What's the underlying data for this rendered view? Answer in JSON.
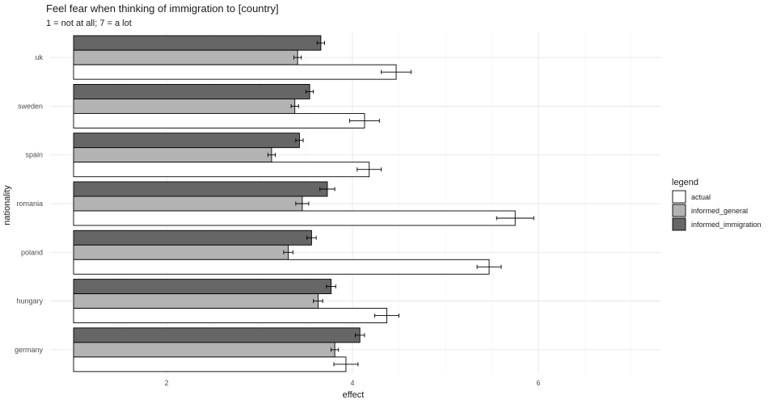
{
  "chart_data": {
    "type": "bar",
    "orientation": "horizontal",
    "title": "Feel fear when thinking of immigration to [country]",
    "subtitle": "1 = not at all; 7 = a lot",
    "xlabel": "effect",
    "ylabel": "nationality",
    "xlim": [
      1,
      7.3
    ],
    "xticks": [
      2,
      4,
      6
    ],
    "grid": true,
    "categories": [
      "germany",
      "hungary",
      "poland",
      "romania",
      "spain",
      "sweden",
      "uk"
    ],
    "legend": {
      "title": "legend",
      "position": "right",
      "entries": [
        "actual",
        "informed_general",
        "informed_immigration"
      ]
    },
    "series": [
      {
        "name": "actual",
        "color": "#ffffff",
        "values": [
          3.93,
          4.37,
          5.47,
          5.75,
          4.18,
          4.13,
          4.47
        ],
        "err": [
          0.13,
          0.13,
          0.13,
          0.2,
          0.13,
          0.16,
          0.16
        ]
      },
      {
        "name": "informed_general",
        "color": "#b3b3b3",
        "values": [
          3.81,
          3.63,
          3.31,
          3.46,
          3.13,
          3.38,
          3.41
        ],
        "err": [
          0.04,
          0.05,
          0.05,
          0.07,
          0.04,
          0.04,
          0.04
        ]
      },
      {
        "name": "informed_immigration",
        "color": "#666666",
        "values": [
          4.08,
          3.77,
          3.56,
          3.73,
          3.43,
          3.54,
          3.66
        ],
        "err": [
          0.05,
          0.05,
          0.05,
          0.08,
          0.04,
          0.04,
          0.04
        ]
      }
    ]
  }
}
